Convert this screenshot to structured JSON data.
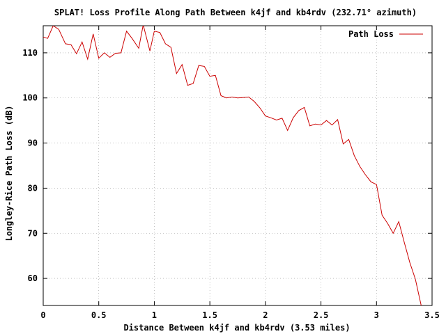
{
  "chart_data": {
    "type": "line",
    "title": "SPLAT! Loss Profile Along Path Between k4jf and kb4rdv (232.71° azimuth)",
    "xlabel": "Distance Between k4jf and kb4rdv (3.53 miles)",
    "ylabel": "Longley-Rice Path Loss (dB)",
    "xlim": [
      0,
      3.5
    ],
    "ylim": [
      54,
      116
    ],
    "xticks": [
      0,
      0.5,
      1,
      1.5,
      2,
      2.5,
      3,
      3.5
    ],
    "xtick_labels": [
      "0",
      "0.5",
      "1",
      "1.5",
      "2",
      "2.5",
      "3",
      "3.5"
    ],
    "yticks": [
      60,
      70,
      80,
      90,
      100,
      110
    ],
    "ytick_labels": [
      "60",
      "70",
      "80",
      "90",
      "100",
      "110"
    ],
    "grid": true,
    "legend_position": "top-right",
    "series": [
      {
        "name": "Path Loss",
        "color": "#cc0000",
        "x": [
          0.0,
          0.04,
          0.09,
          0.14,
          0.2,
          0.25,
          0.3,
          0.35,
          0.4,
          0.45,
          0.5,
          0.55,
          0.6,
          0.65,
          0.7,
          0.75,
          0.8,
          0.86,
          0.9,
          0.96,
          1.0,
          1.05,
          1.1,
          1.15,
          1.2,
          1.25,
          1.3,
          1.35,
          1.4,
          1.45,
          1.5,
          1.55,
          1.6,
          1.65,
          1.7,
          1.75,
          1.8,
          1.85,
          1.9,
          1.95,
          2.0,
          2.05,
          2.1,
          2.15,
          2.2,
          2.25,
          2.3,
          2.35,
          2.4,
          2.45,
          2.5,
          2.55,
          2.6,
          2.65,
          2.7,
          2.75,
          2.8,
          2.85,
          2.9,
          2.95,
          3.0,
          3.05,
          3.1,
          3.15,
          3.2,
          3.25,
          3.3,
          3.35,
          3.4,
          3.45,
          3.48
        ],
        "y": [
          113.5,
          113.2,
          116.0,
          115.2,
          112.0,
          111.8,
          109.8,
          112.4,
          108.6,
          114.2,
          108.8,
          110.0,
          109.0,
          109.9,
          110.0,
          114.8,
          113.2,
          111.0,
          116.2,
          110.4,
          114.8,
          114.5,
          112.0,
          111.2,
          105.4,
          107.4,
          102.8,
          103.2,
          107.2,
          107.0,
          104.8,
          105.0,
          100.5,
          100.0,
          100.2,
          100.0,
          100.1,
          100.2,
          99.2,
          97.8,
          96.0,
          95.6,
          95.1,
          95.5,
          92.8,
          95.6,
          97.2,
          97.9,
          93.8,
          94.2,
          94.0,
          95.0,
          94.0,
          95.2,
          89.8,
          90.8,
          87.2,
          84.8,
          83.0,
          81.4,
          80.8,
          74.0,
          72.2,
          70.0,
          72.6,
          68.0,
          63.5,
          59.8,
          54.2,
          50.0,
          48.0
        ]
      }
    ]
  }
}
